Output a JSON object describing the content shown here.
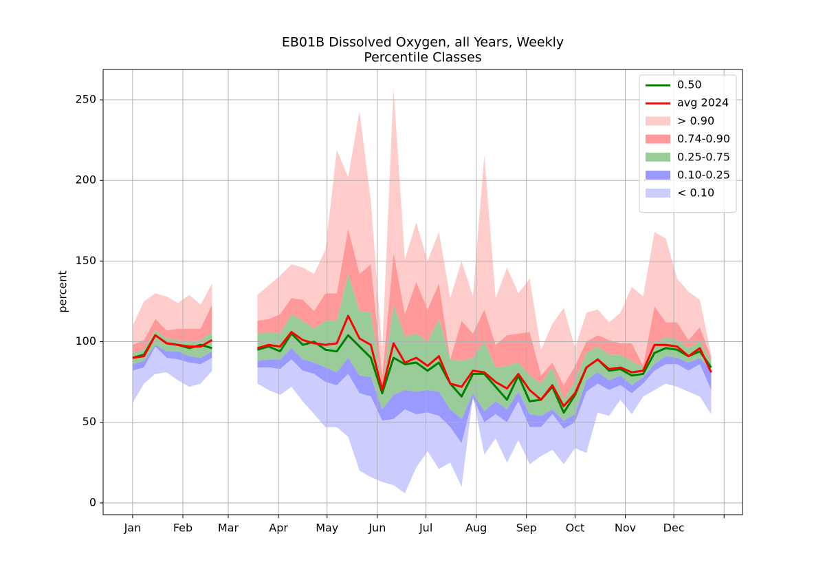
{
  "chart_data": {
    "type": "percentile-bands",
    "title": "EB01B Dissolved Oxygen, all Years, Weekly",
    "subtitle": "Percentile Classes",
    "ylabel": "percent",
    "x": [
      1,
      2,
      3,
      4,
      5,
      6,
      7,
      8,
      9,
      10,
      11,
      12,
      13,
      14,
      15,
      16,
      17,
      18,
      19,
      20,
      21,
      22,
      23,
      24,
      25,
      26,
      27,
      28,
      29,
      30,
      31,
      32,
      33,
      34,
      35,
      36,
      37,
      38,
      39,
      40,
      41,
      42,
      43,
      44,
      45,
      46,
      47,
      48,
      49,
      50,
      51,
      52
    ],
    "xlim": [
      -1.6,
      54.76
    ],
    "xticks": [
      {
        "value": 1,
        "label": "Jan"
      },
      {
        "value": 5.43,
        "label": "Feb"
      },
      {
        "value": 9.43,
        "label": "Mar"
      },
      {
        "value": 13.86,
        "label": "Apr"
      },
      {
        "value": 18.14,
        "label": "May"
      },
      {
        "value": 22.57,
        "label": "Jun"
      },
      {
        "value": 26.86,
        "label": "Jul"
      },
      {
        "value": 31.29,
        "label": "Aug"
      },
      {
        "value": 35.71,
        "label": "Sep"
      },
      {
        "value": 40,
        "label": "Oct"
      },
      {
        "value": 44.43,
        "label": "Nov"
      },
      {
        "value": 48.71,
        "label": "Dec"
      },
      {
        "value": 53.14
      }
    ],
    "ylim": [
      -7.3,
      268.8
    ],
    "yticks": [
      0,
      50,
      100,
      150,
      200,
      250
    ],
    "grid": true,
    "legend": "upper right",
    "series": [
      {
        "name": "0.50",
        "color": "#008000",
        "values": [
          90,
          92,
          104,
          99,
          98,
          96,
          98,
          96,
          null,
          null,
          null,
          95,
          97,
          94,
          105,
          98,
          100,
          95,
          94,
          104,
          97,
          90,
          68,
          90,
          86,
          87,
          82,
          87,
          74,
          66,
          80,
          80,
          72,
          64,
          79,
          63,
          64,
          72,
          56,
          67,
          84,
          89,
          82,
          83,
          79,
          80,
          93,
          96,
          95,
          91,
          94,
          84
        ]
      },
      {
        "name": "avg 2024",
        "color": "#ff0000",
        "values": [
          90,
          91,
          104,
          99,
          98,
          97,
          97,
          101,
          null,
          null,
          null,
          96,
          98,
          97,
          106,
          101,
          99,
          98,
          99,
          116,
          102,
          98,
          70,
          99,
          87,
          90,
          85,
          91,
          74,
          72,
          82,
          81,
          75,
          71,
          80,
          70,
          64,
          73,
          60,
          68,
          84,
          89,
          83,
          84,
          81,
          82,
          98,
          98,
          97,
          91,
          96,
          81
        ]
      }
    ],
    "bands": [
      {
        "name": "> 0.90",
        "color": "#ffcccc"
      },
      {
        "name": "0.74-0.90",
        "color": "#ff9999"
      },
      {
        "name": "0.25-0.75",
        "color": "#99cc99"
      },
      {
        "name": "0.10-0.25",
        "color": "#9999ff"
      },
      {
        "name": "< 0.10",
        "color": "#ccccff"
      }
    ],
    "boundaries": [
      [
        110,
        125,
        130,
        128,
        124,
        129,
        123,
        136,
        null,
        null,
        null,
        129,
        135,
        141,
        148,
        146,
        142,
        157,
        219,
        202,
        243,
        187,
        95,
        257,
        151,
        174,
        150,
        168,
        127,
        150,
        128,
        216,
        127,
        146,
        130,
        139,
        95,
        111,
        121,
        96,
        118,
        120,
        112,
        118,
        134,
        128,
        168,
        164,
        139,
        131,
        126,
        92
      ],
      [
        98,
        101,
        114,
        107,
        108,
        108,
        108,
        123,
        null,
        null,
        null,
        113,
        114,
        117,
        127,
        126,
        119,
        130,
        130,
        170,
        142,
        148,
        78,
        155,
        117,
        137,
        120,
        136,
        89,
        113,
        105,
        120,
        98,
        104,
        105,
        106,
        79,
        87,
        73,
        85,
        100,
        104,
        101,
        99,
        99,
        85,
        122,
        112,
        112,
        101,
        109,
        90
      ],
      [
        93,
        95,
        107,
        102,
        101,
        100,
        101,
        106,
        null,
        null,
        null,
        105,
        106,
        105,
        117,
        113,
        108,
        113,
        113,
        142,
        119,
        118,
        71,
        123,
        103,
        105,
        100,
        114,
        89,
        88,
        90,
        100,
        84,
        85,
        87,
        79,
        74,
        84,
        64,
        76,
        93,
        97,
        92,
        92,
        88,
        84,
        99,
        103,
        101,
        96,
        100,
        88
      ],
      [
        86,
        88,
        98,
        94,
        94,
        91,
        90,
        94,
        null,
        null,
        null,
        88,
        89,
        89,
        96,
        89,
        87,
        84,
        81,
        90,
        79,
        78,
        58,
        67,
        70,
        69,
        70,
        69,
        58,
        52,
        68,
        57,
        63,
        58,
        69,
        55,
        54,
        58,
        51,
        55,
        76,
        81,
        76,
        79,
        73,
        78,
        86,
        91,
        90,
        87,
        90,
        82
      ],
      [
        82,
        84,
        97,
        90,
        89,
        87,
        86,
        90,
        null,
        null,
        null,
        84,
        84,
        83,
        89,
        82,
        80,
        75,
        73,
        80,
        68,
        66,
        51,
        52,
        58,
        55,
        56,
        54,
        47,
        37,
        65,
        50,
        55,
        50,
        63,
        47,
        47,
        55,
        46,
        50,
        69,
        74,
        70,
        73,
        68,
        74,
        82,
        86,
        86,
        82,
        86,
        70
      ],
      [
        62,
        74,
        80,
        81,
        76,
        72,
        74,
        82,
        null,
        null,
        null,
        74,
        70,
        67,
        72,
        63,
        55,
        47,
        47,
        41,
        20,
        16,
        13,
        11,
        6,
        22,
        32,
        21,
        25,
        10,
        66,
        30,
        40,
        25,
        39,
        24,
        29,
        33,
        24,
        34,
        31,
        56,
        54,
        64,
        55,
        66,
        70,
        74,
        72,
        69,
        66,
        55
      ]
    ]
  }
}
